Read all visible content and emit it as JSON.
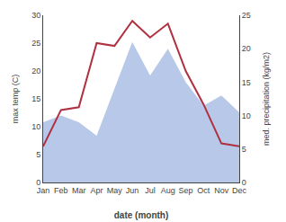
{
  "chart_data": {
    "type": "line",
    "categories": [
      "Jan",
      "Feb",
      "Mar",
      "Apr",
      "May",
      "Jun",
      "Jul",
      "Aug",
      "Sep",
      "Oct",
      "Nov",
      "Dec"
    ],
    "series": [
      {
        "type": "line",
        "color": "#b03040",
        "values": [
          6.5,
          13.0,
          13.5,
          25.0,
          24.5,
          29.0,
          26.0,
          28.5,
          20.0,
          14.0,
          7.0,
          6.5
        ]
      },
      {
        "type": "area",
        "color": "#b8c8e8",
        "axis": "y2",
        "values": [
          9.0,
          10.0,
          9.0,
          7.0,
          14.0,
          21.0,
          16.0,
          20.0,
          15.0,
          11.5,
          13.0,
          10.5
        ]
      }
    ],
    "xlabel": "date (month)",
    "ylabel": "max temp (C)",
    "y2label": "med. precipitation (kg/m2)",
    "ylim": [
      0,
      30
    ],
    "yticks": [
      0,
      5,
      10,
      15,
      20,
      25,
      30
    ],
    "y2lim": [
      0,
      25
    ],
    "y2ticks": [
      0,
      5,
      10,
      15,
      20,
      25
    ],
    "grid": false
  }
}
